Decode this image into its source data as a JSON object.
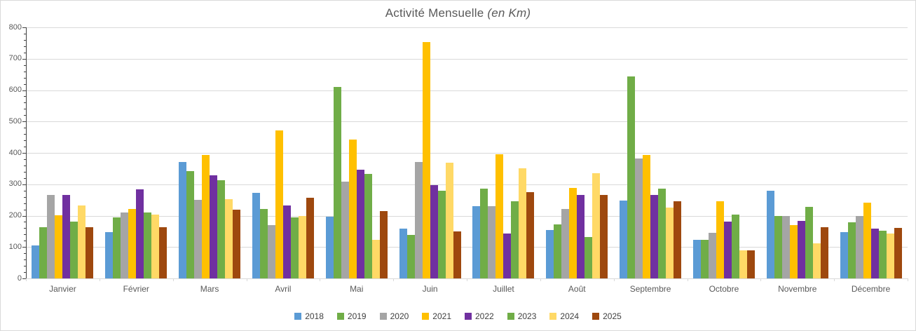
{
  "chart": {
    "title_main": "Activité Mensuelle",
    "title_note": "(en Km)"
  },
  "chart_data": {
    "type": "bar",
    "title": "Activité Mensuelle (en Km)",
    "categories": [
      "Janvier",
      "Février",
      "Mars",
      "Avril",
      "Mai",
      "Juin",
      "Juillet",
      "Août",
      "Septembre",
      "Octobre",
      "Novembre",
      "Décembre"
    ],
    "series": [
      {
        "name": "2018",
        "color": "#5B9BD5",
        "values": [
          105,
          148,
          371,
          273,
          196,
          159,
          230,
          155,
          248,
          123,
          280,
          148
        ]
      },
      {
        "name": "2019",
        "color": "#70AD47",
        "values": [
          164,
          195,
          341,
          222,
          609,
          139,
          285,
          172,
          644,
          123,
          198,
          178
        ]
      },
      {
        "name": "2020",
        "color": "#A5A5A5",
        "values": [
          265,
          210,
          251,
          169,
          308,
          371,
          231,
          221,
          382,
          146,
          198,
          200
        ]
      },
      {
        "name": "2021",
        "color": "#FFC000",
        "values": [
          201,
          222,
          393,
          471,
          442,
          752,
          395,
          289,
          393,
          245,
          170,
          241
        ]
      },
      {
        "name": "2022",
        "color": "#7030A0",
        "values": [
          265,
          283,
          329,
          233,
          346,
          298,
          144,
          267,
          265,
          181,
          183,
          159
        ]
      },
      {
        "name": "2023",
        "color": "#70AD47",
        "values": [
          181,
          211,
          313,
          194,
          334,
          280,
          246,
          131,
          285,
          204,
          227,
          153
        ]
      },
      {
        "name": "2024",
        "color": "#FFD966",
        "values": [
          233,
          204,
          253,
          198,
          123,
          369,
          350,
          336,
          226,
          90,
          112,
          144
        ]
      },
      {
        "name": "2025",
        "color": "#9E480E",
        "values": [
          164,
          164,
          220,
          256,
          215,
          149,
          276,
          265,
          246,
          90,
          164,
          161
        ]
      }
    ],
    "ylim": [
      0,
      800
    ],
    "y_major_step": 100,
    "y_minor_step": 20,
    "grid": true,
    "legend_position": "bottom",
    "xlabel": "",
    "ylabel": ""
  },
  "style": {
    "background": "#FFFFFF",
    "border_color": "#D9D9D9",
    "gridline_color": "#D9D9D9",
    "axis_line_color": "#404040",
    "axis_text_color": "#595959",
    "title_color": "#595959",
    "legend_text_color": "#404040"
  }
}
